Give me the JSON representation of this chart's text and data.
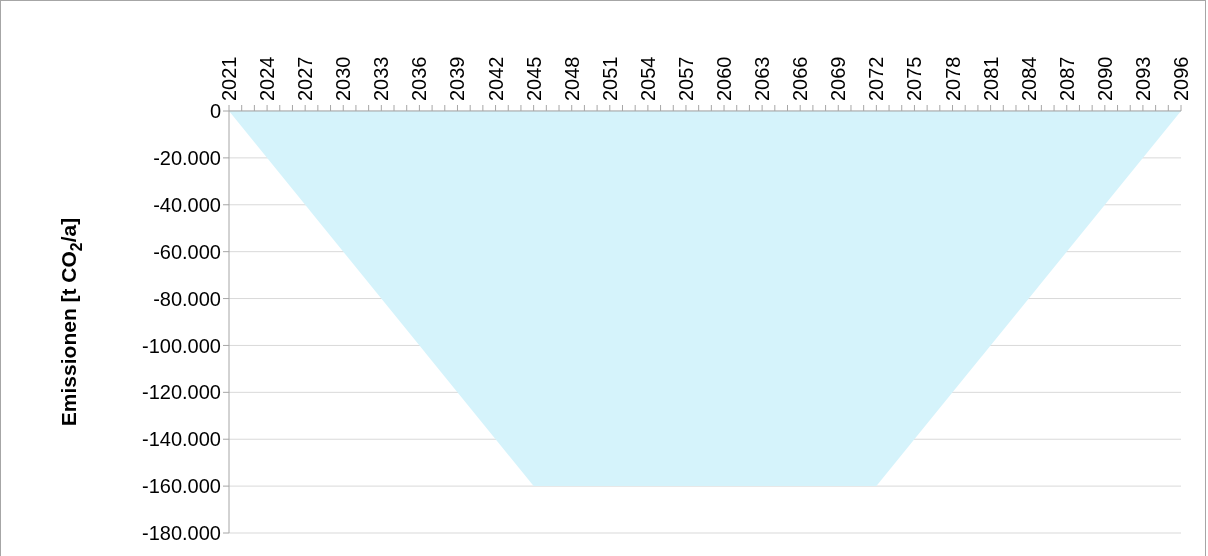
{
  "chart_data": {
    "type": "area",
    "ylabel": "Emissionen [t CO$_{2}$/a]",
    "x": [
      2021,
      2045,
      2072,
      2096
    ],
    "values": [
      0,
      -160000,
      -160000,
      0
    ],
    "color": "#d5f3fb",
    "xlim": [
      2021,
      2096
    ],
    "xticks": [
      2021,
      {
        "value": 2022,
        "label": null
      },
      {
        "value": 2023,
        "label": null
      },
      2024,
      {
        "value": 2025,
        "label": null
      },
      {
        "value": 2026,
        "label": null
      },
      2027,
      {
        "value": 2028,
        "label": null
      },
      {
        "value": 2029,
        "label": null
      },
      2030,
      {
        "value": 2031,
        "label": null
      },
      {
        "value": 2032,
        "label": null
      },
      2033,
      {
        "value": 2034,
        "label": null
      },
      {
        "value": 2035,
        "label": null
      },
      2036,
      {
        "value": 2037,
        "label": null
      },
      {
        "value": 2038,
        "label": null
      },
      2039,
      {
        "value": 2040,
        "label": null
      },
      {
        "value": 2041,
        "label": null
      },
      2042,
      {
        "value": 2043,
        "label": null
      },
      {
        "value": 2044,
        "label": null
      },
      2045,
      {
        "value": 2046,
        "label": null
      },
      {
        "value": 2047,
        "label": null
      },
      2048,
      {
        "value": 2049,
        "label": null
      },
      {
        "value": 2050,
        "label": null
      },
      2051,
      {
        "value": 2052,
        "label": null
      },
      {
        "value": 2053,
        "label": null
      },
      2054,
      {
        "value": 2055,
        "label": null
      },
      {
        "value": 2056,
        "label": null
      },
      2057,
      {
        "value": 2058,
        "label": null
      },
      {
        "value": 2059,
        "label": null
      },
      2060,
      {
        "value": 2061,
        "label": null
      },
      {
        "value": 2062,
        "label": null
      },
      2063,
      {
        "value": 2064,
        "label": null
      },
      {
        "value": 2065,
        "label": null
      },
      2066,
      {
        "value": 2067,
        "label": null
      },
      {
        "value": 2068,
        "label": null
      },
      2069,
      {
        "value": 2070,
        "label": null
      },
      {
        "value": 2071,
        "label": null
      },
      2072,
      {
        "value": 2073,
        "label": null
      },
      {
        "value": 2074,
        "label": null
      },
      2075,
      {
        "value": 2076,
        "label": null
      },
      {
        "value": 2077,
        "label": null
      },
      2078,
      {
        "value": 2079,
        "label": null
      },
      {
        "value": 2080,
        "label": null
      },
      2081,
      {
        "value": 2082,
        "label": null
      },
      {
        "value": 2083,
        "label": null
      },
      2084,
      {
        "value": 2085,
        "label": null
      },
      {
        "value": 2086,
        "label": null
      },
      2087,
      {
        "value": 2088,
        "label": null
      },
      {
        "value": 2089,
        "label": null
      },
      2090,
      {
        "value": 2091,
        "label": null
      },
      {
        "value": 2092,
        "label": null
      },
      2093,
      {
        "value": 2094,
        "label": null
      },
      {
        "value": 2095,
        "label": null
      },
      2096
    ],
    "ylim": [
      -180000,
      0
    ],
    "yticks": [
      {
        "value": -180000,
        "label": "-180.000"
      },
      {
        "value": -160000,
        "label": "-160.000"
      },
      {
        "value": -140000,
        "label": "-140.000"
      },
      {
        "value": -120000,
        "label": "-120.000"
      },
      {
        "value": -100000,
        "label": "-100.000"
      },
      {
        "value": -80000,
        "label": "-80.000"
      },
      {
        "value": -60000,
        "label": "-60.000"
      },
      {
        "value": -40000,
        "label": "-40.000"
      },
      {
        "value": -20000,
        "label": "-20.000"
      },
      0
    ],
    "grid": "y"
  }
}
